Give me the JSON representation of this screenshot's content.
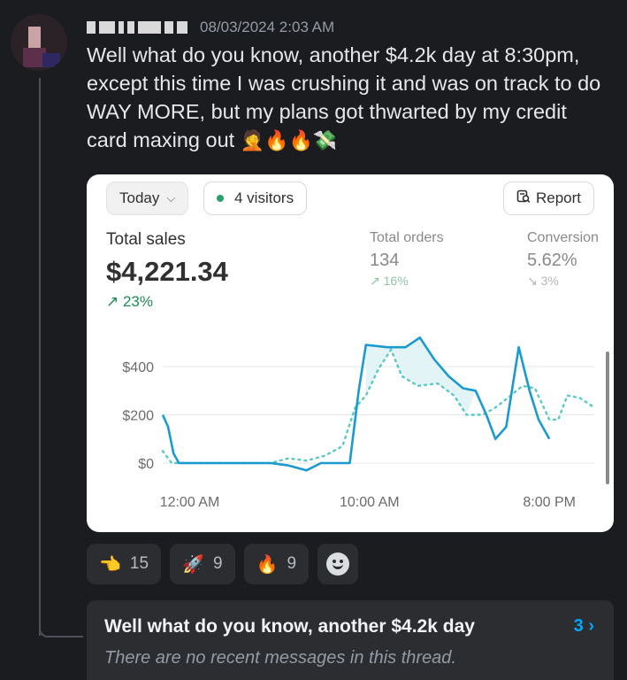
{
  "message": {
    "timestamp": "08/03/2024 2:03 AM",
    "text": "Well what do you know, another $4.2k day at 8:30pm, except this time I was crushing it and was on track to do WAY MORE, but my plans got thwarted by my credit card maxing out",
    "trailing_emojis": "🤦🔥🔥💸"
  },
  "card": {
    "date_range": "Today",
    "visitors": "4 visitors",
    "report_label": "Report",
    "total_sales_label": "Total sales",
    "total_sales_value": "$4,221.34",
    "total_sales_change": "↗ 23%",
    "total_orders_label": "Total orders",
    "total_orders_value": "134",
    "total_orders_change": "↗ 16%",
    "conversion_label": "Conversion",
    "conversion_value": "5.62%",
    "conversion_change": "↘ 3%"
  },
  "chart_data": {
    "type": "line",
    "ylim": [
      0,
      550
    ],
    "yticks": [
      "$0",
      "$200",
      "$400"
    ],
    "ytick_values": [
      0,
      200,
      400
    ],
    "xticks": [
      "12:00 AM",
      "10:00 AM",
      "8:00 PM"
    ],
    "xtick_positions": [
      1.5,
      11.5,
      21.5
    ],
    "xlim": [
      0,
      24
    ],
    "series": [
      {
        "style": "solid",
        "color": "#1b9ad1",
        "points": [
          [
            0,
            200
          ],
          [
            0.3,
            150
          ],
          [
            0.6,
            40
          ],
          [
            0.9,
            0
          ],
          [
            3,
            0
          ],
          [
            6,
            0
          ],
          [
            7,
            -10
          ],
          [
            8,
            -30
          ],
          [
            8.8,
            0
          ],
          [
            9.8,
            0
          ],
          [
            10.4,
            0
          ],
          [
            10.9,
            300
          ],
          [
            11.3,
            490
          ],
          [
            12.5,
            480
          ],
          [
            13.5,
            480
          ],
          [
            14.3,
            520
          ],
          [
            15.1,
            430
          ],
          [
            15.9,
            360
          ],
          [
            16.7,
            310
          ],
          [
            17.4,
            300
          ],
          [
            18,
            200
          ],
          [
            18.5,
            100
          ],
          [
            19.1,
            150
          ],
          [
            19.8,
            480
          ],
          [
            20.4,
            300
          ],
          [
            20.9,
            180
          ],
          [
            21.5,
            100
          ]
        ]
      },
      {
        "style": "dotted",
        "color": "#5ac8c4",
        "points": [
          [
            0,
            50
          ],
          [
            0.5,
            0
          ],
          [
            6,
            0
          ],
          [
            7,
            20
          ],
          [
            8,
            10
          ],
          [
            9,
            30
          ],
          [
            10,
            70
          ],
          [
            10.7,
            230
          ],
          [
            11.3,
            280
          ],
          [
            12,
            390
          ],
          [
            12.7,
            470
          ],
          [
            13.3,
            360
          ],
          [
            14.2,
            320
          ],
          [
            15.3,
            330
          ],
          [
            16.2,
            280
          ],
          [
            16.9,
            200
          ],
          [
            17.8,
            200
          ],
          [
            18.5,
            230
          ],
          [
            19.2,
            270
          ],
          [
            20,
            320
          ],
          [
            20.7,
            310
          ],
          [
            21.5,
            180
          ],
          [
            22,
            180
          ],
          [
            22.5,
            280
          ],
          [
            23.2,
            270
          ],
          [
            24,
            230
          ]
        ]
      }
    ]
  },
  "reactions": [
    {
      "emoji": "👈",
      "count": "15"
    },
    {
      "emoji": "🚀",
      "count": "9"
    },
    {
      "emoji": "🔥",
      "count": "9"
    }
  ],
  "thread": {
    "title": "Well what do you know, another $4.2k day",
    "count": "3 ›",
    "subtitle": "There are no recent messages in this thread."
  }
}
